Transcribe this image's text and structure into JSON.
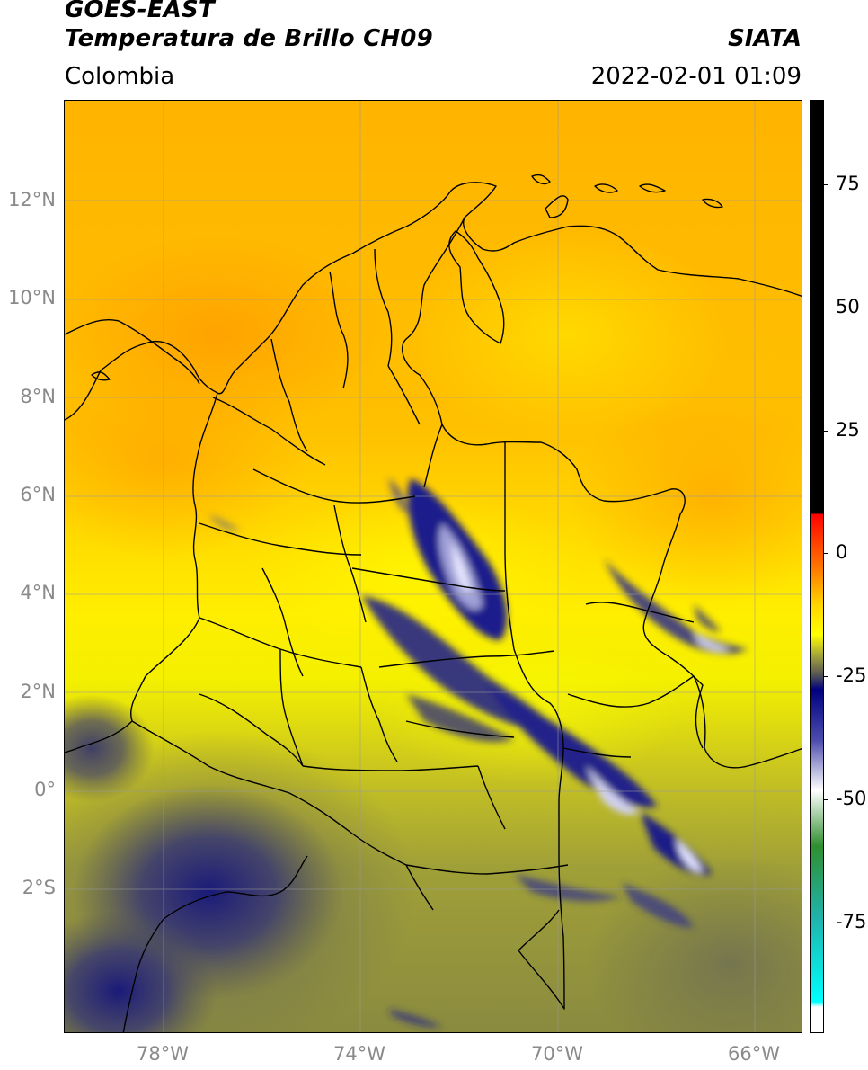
{
  "header": {
    "satellite": "GOES-EAST",
    "product": "Temperatura de Brillo CH09",
    "region": "Colombia",
    "brand": "SIATA",
    "timestamp": "2022-02-01 01:09"
  },
  "map": {
    "lat_labels": [
      {
        "text": "12°N",
        "lat": 12
      },
      {
        "text": "10°N",
        "lat": 10
      },
      {
        "text": "8°N",
        "lat": 8
      },
      {
        "text": "6°N",
        "lat": 6
      },
      {
        "text": "4°N",
        "lat": 4
      },
      {
        "text": "2°N",
        "lat": 2
      },
      {
        "text": "0°",
        "lat": 0
      },
      {
        "text": "2°S",
        "lat": -2
      }
    ],
    "lon_labels": [
      {
        "text": "78°W",
        "lon": -78
      },
      {
        "text": "74°W",
        "lon": -74
      },
      {
        "text": "70°W",
        "lon": -70
      },
      {
        "text": "66°W",
        "lon": -66
      }
    ],
    "extent": {
      "lon_min": -79.8,
      "lon_max": -64.8,
      "lat_min": -4.2,
      "lat_max": 14.2
    },
    "grid": true
  },
  "colorbar": {
    "labels": [
      {
        "text": "75",
        "value": 75
      },
      {
        "text": "50",
        "value": 50
      },
      {
        "text": "25",
        "value": 25
      },
      {
        "text": "0",
        "value": 0
      },
      {
        "text": "-25",
        "value": -25
      },
      {
        "text": "-50",
        "value": -50
      },
      {
        "text": "-75",
        "value": -75
      }
    ],
    "range": [
      -95,
      90
    ],
    "stops": [
      {
        "value": 90,
        "color": "#000000"
      },
      {
        "value": 8,
        "color": "#000000"
      },
      {
        "value": 7.9,
        "color": "#ff0000"
      },
      {
        "value": -3,
        "color": "#ff7a00"
      },
      {
        "value": -10,
        "color": "#ffd400"
      },
      {
        "value": -16,
        "color": "#ffff00"
      },
      {
        "value": -20,
        "color": "#a8a838"
      },
      {
        "value": -24,
        "color": "#555555"
      },
      {
        "value": -27,
        "color": "#000080"
      },
      {
        "value": -37,
        "color": "#4c4cae"
      },
      {
        "value": -47,
        "color": "#ffffff"
      },
      {
        "value": -58,
        "color": "#2f8f2f"
      },
      {
        "value": -72,
        "color": "#20b2aa"
      },
      {
        "value": -89,
        "color": "#00ffff"
      },
      {
        "value": -90,
        "color": "#ffffff"
      },
      {
        "value": -95,
        "color": "#ffffff"
      }
    ]
  }
}
